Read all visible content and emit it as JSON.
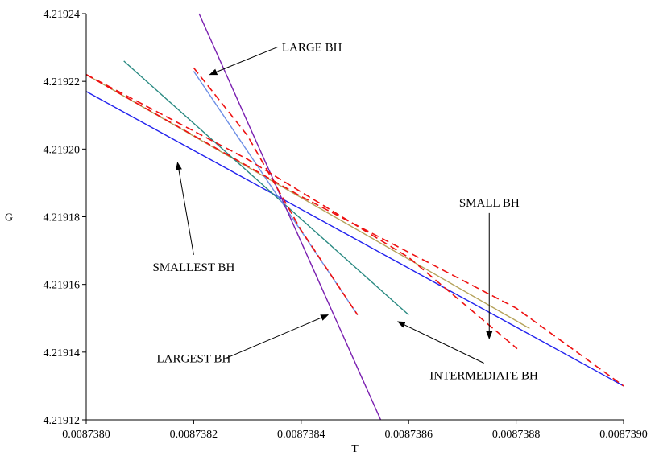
{
  "chart_data": {
    "type": "line",
    "xlabel": "T",
    "ylabel": "G",
    "xlim": [
      0.008738,
      0.008739
    ],
    "ylim": [
      4.21912,
      4.21924
    ],
    "xticks": [
      "0.0087380",
      "0.0087382",
      "0.0087384",
      "0.0087386",
      "0.0087388",
      "0.0087390"
    ],
    "xtick_values": [
      0.008738,
      0.0087382,
      0.0087384,
      0.0087386,
      0.0087388,
      0.008739
    ],
    "yticks": [
      "4.21912",
      "4.21914",
      "4.21916",
      "4.21918",
      "4.21920",
      "4.21922",
      "4.21924"
    ],
    "ytick_values": [
      4.21912,
      4.21914,
      4.21916,
      4.21918,
      4.2192,
      4.21922,
      4.21924
    ],
    "grid": false,
    "series": [
      {
        "color": "#2222ee",
        "dashed": false,
        "x": [
          0.008738,
          0.008739
        ],
        "y": [
          4.219217,
          4.21913
        ]
      },
      {
        "color": "#b5a25a",
        "dashed": false,
        "x": [
          0.008738,
          0.008738825
        ],
        "y": [
          4.219222,
          4.219147
        ]
      },
      {
        "color": "#2a8a82",
        "dashed": false,
        "x": [
          0.00873807,
          0.0087386
        ],
        "y": [
          4.219226,
          4.219151
        ]
      },
      {
        "color": "#6d8fe6",
        "dashed": false,
        "x": [
          0.0087382,
          0.008738505
        ],
        "y": [
          4.219223,
          4.219151
        ]
      },
      {
        "color": "#7a1fb0",
        "dashed": false,
        "x": [
          0.00873821,
          0.008738548
        ],
        "y": [
          4.21924,
          4.21912
        ]
      },
      {
        "color": "#ee1111",
        "dashed": true,
        "x": [
          0.0087382,
          0.0087383,
          0.0087384,
          0.008738505
        ],
        "y": [
          4.219224,
          4.219204,
          4.219176,
          4.219151
        ]
      },
      {
        "color": "#ee1111",
        "dashed": true,
        "x": [
          0.008738,
          0.0087383,
          0.0087386,
          0.008738802
        ],
        "y": [
          4.219222,
          4.219197,
          4.219168,
          4.219141
        ]
      },
      {
        "color": "#ee1111",
        "dashed": true,
        "x": [
          0.008738,
          0.0087384,
          0.0087388,
          0.008739
        ],
        "y": [
          4.219222,
          4.219186,
          4.219153,
          4.21913
        ]
      }
    ],
    "annotations": [
      {
        "label": "LARGE BH",
        "x": 0.00873842,
        "y": 4.219229,
        "arrow_to_x": 0.00873823,
        "arrow_to_y": 4.219222
      },
      {
        "label": "SMALL BH",
        "x": 0.00873875,
        "y": 4.219183,
        "arrow_to_x": 0.00873875,
        "arrow_to_y": 4.219144
      },
      {
        "label": "SMALLEST BH",
        "x": 0.0087382,
        "y": 4.219164,
        "arrow_to_x": 0.00873817,
        "arrow_to_y": 4.219196
      },
      {
        "label": "LARGEST BH",
        "x": 0.0087382,
        "y": 4.219137,
        "arrow_to_x": 0.00873845,
        "arrow_to_y": 4.219151
      },
      {
        "label": "INTERMEDIATE BH",
        "x": 0.00873874,
        "y": 4.219132,
        "arrow_to_x": 0.00873858,
        "arrow_to_y": 4.219149
      }
    ]
  }
}
